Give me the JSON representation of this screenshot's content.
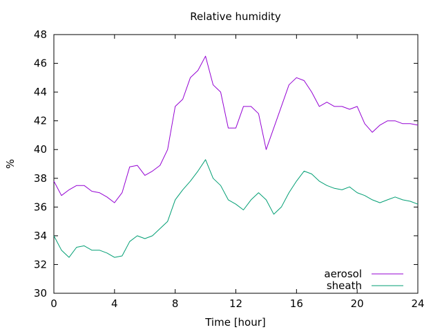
{
  "chart_data": {
    "type": "line",
    "title": "Relative humidity",
    "xlabel": "Time [hour]",
    "ylabel": "%",
    "xlim": [
      0,
      24
    ],
    "ylim": [
      30,
      48
    ],
    "x_ticks": [
      0,
      4,
      8,
      12,
      16,
      20,
      24
    ],
    "y_ticks": [
      30,
      32,
      34,
      36,
      38,
      40,
      42,
      44,
      46,
      48
    ],
    "grid": false,
    "legend_position": "bottom-right",
    "series": [
      {
        "name": "aerosol",
        "color": "#9400d3",
        "x": [
          0,
          0.5,
          1,
          1.5,
          2,
          2.5,
          3,
          3.5,
          4,
          4.5,
          5,
          5.5,
          6,
          6.5,
          7,
          7.5,
          8,
          8.5,
          9,
          9.5,
          10,
          10.5,
          11,
          11.5,
          12,
          12.5,
          13,
          13.5,
          14,
          14.5,
          15,
          15.5,
          16,
          16.5,
          17,
          17.5,
          18,
          18.5,
          19,
          19.5,
          20,
          20.5,
          21,
          21.5,
          22,
          22.5,
          23,
          23.5,
          24
        ],
        "values": [
          37.8,
          36.8,
          37.2,
          37.5,
          37.5,
          37.1,
          37.0,
          36.7,
          36.3,
          37.0,
          38.8,
          38.9,
          38.2,
          38.5,
          38.9,
          40.0,
          43.0,
          43.5,
          45.0,
          45.5,
          46.5,
          44.5,
          44.0,
          41.5,
          41.5,
          43.0,
          43.0,
          42.5,
          40.0,
          41.5,
          43.0,
          44.5,
          45.0,
          44.8,
          44.0,
          43.0,
          43.3,
          43.0,
          43.0,
          42.8,
          43.0,
          41.8,
          41.2,
          41.7,
          42.0,
          42.0,
          41.8,
          41.8,
          41.7
        ]
      },
      {
        "name": "sheath",
        "color": "#009e73",
        "x": [
          0,
          0.5,
          1,
          1.5,
          2,
          2.5,
          3,
          3.5,
          4,
          4.5,
          5,
          5.5,
          6,
          6.5,
          7,
          7.5,
          8,
          8.5,
          9,
          9.5,
          10,
          10.5,
          11,
          11.5,
          12,
          12.5,
          13,
          13.5,
          14,
          14.5,
          15,
          15.5,
          16,
          16.5,
          17,
          17.5,
          18,
          18.5,
          19,
          19.5,
          20,
          20.5,
          21,
          21.5,
          22,
          22.5,
          23,
          23.5,
          24
        ],
        "values": [
          34.0,
          33.0,
          32.5,
          33.2,
          33.3,
          33.0,
          33.0,
          32.8,
          32.5,
          32.6,
          33.6,
          34.0,
          33.8,
          34.0,
          34.5,
          35.0,
          36.5,
          37.2,
          37.8,
          38.5,
          39.3,
          38.0,
          37.5,
          36.5,
          36.2,
          35.8,
          36.5,
          37.0,
          36.5,
          35.5,
          36.0,
          37.0,
          37.8,
          38.5,
          38.3,
          37.8,
          37.5,
          37.3,
          37.2,
          37.4,
          37.0,
          36.8,
          36.5,
          36.3,
          36.5,
          36.7,
          36.5,
          36.4,
          36.2
        ]
      }
    ]
  }
}
